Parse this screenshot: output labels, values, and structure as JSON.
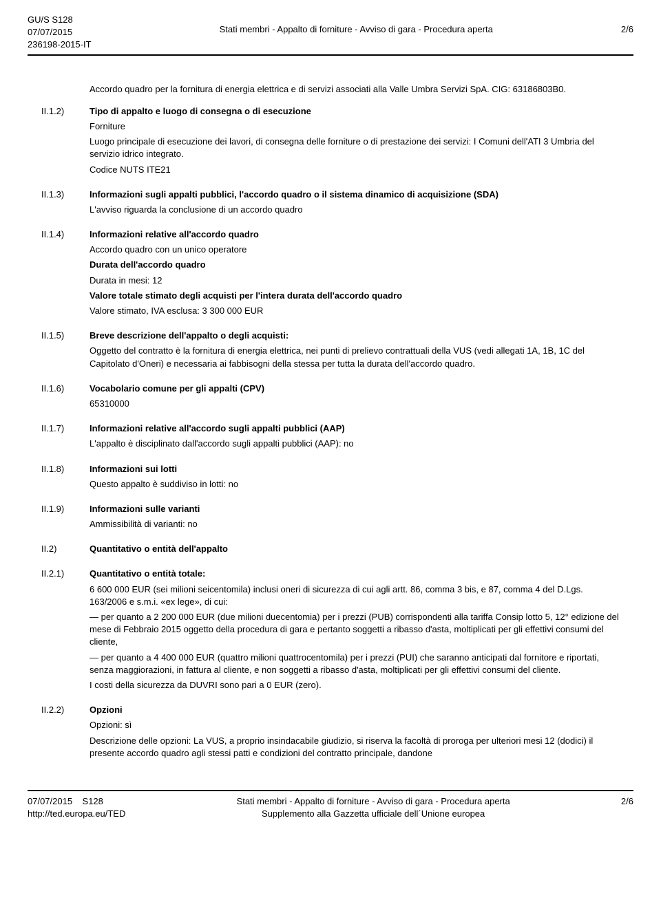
{
  "header": {
    "left_line1": "GU/S S128",
    "left_line2": "07/07/2015",
    "left_line3": "236198-2015-IT",
    "center": "Stati membri - Appalto di forniture - Avviso di gara - Procedura aperta",
    "right": "2/6"
  },
  "sections": [
    {
      "label": "",
      "indent_only": true,
      "paragraphs": [
        {
          "text": "Accordo quadro per la fornitura di energia elettrica e di servizi associati alla Valle Umbra Servizi SpA. CIG: 63186803B0."
        }
      ]
    },
    {
      "label": "II.1.2)",
      "paragraphs": [
        {
          "text": "Tipo di appalto e luogo di consegna o di esecuzione",
          "bold": true
        },
        {
          "text": "Forniture"
        },
        {
          "text": "Luogo principale di esecuzione dei lavori, di consegna delle forniture o di prestazione dei servizi: I Comuni dell'ATI 3 Umbria del servizio idrico integrato."
        },
        {
          "text": "Codice NUTS ITE21"
        }
      ]
    },
    {
      "label": "II.1.3)",
      "paragraphs": [
        {
          "text": "Informazioni sugli appalti pubblici, l'accordo quadro o il sistema dinamico di acquisizione (SDA)",
          "bold": true
        },
        {
          "text": "L'avviso riguarda la conclusione di un accordo quadro"
        }
      ]
    },
    {
      "label": "II.1.4)",
      "paragraphs": [
        {
          "text": "Informazioni relative all'accordo quadro",
          "bold": true
        },
        {
          "text": "Accordo quadro con un unico operatore"
        },
        {
          "text": "Durata dell'accordo quadro",
          "bold": true
        },
        {
          "text": "Durata in mesi: 12"
        },
        {
          "text": "Valore totale stimato degli acquisti per l'intera durata dell'accordo quadro",
          "bold": true
        },
        {
          "text": "Valore stimato, IVA esclusa: 3 300 000 EUR"
        }
      ]
    },
    {
      "label": "II.1.5)",
      "paragraphs": [
        {
          "text": "Breve descrizione dell'appalto o degli acquisti:",
          "bold": true
        },
        {
          "text": "Oggetto del contratto è la fornitura di energia elettrica, nei punti di prelievo contrattuali della VUS (vedi allegati 1A, 1B, 1C del Capitolato d'Oneri) e necessaria ai fabbisogni della stessa per tutta la durata dell'accordo quadro."
        }
      ]
    },
    {
      "label": "II.1.6)",
      "paragraphs": [
        {
          "text": "Vocabolario comune per gli appalti (CPV)",
          "bold": true
        },
        {
          "text": "65310000"
        }
      ]
    },
    {
      "label": "II.1.7)",
      "paragraphs": [
        {
          "text": "Informazioni relative all'accordo sugli appalti pubblici (AAP)",
          "bold": true
        },
        {
          "text": "L'appalto è disciplinato dall'accordo sugli appalti pubblici (AAP): no"
        }
      ]
    },
    {
      "label": "II.1.8)",
      "paragraphs": [
        {
          "text": "Informazioni sui lotti",
          "bold": true
        },
        {
          "text": "Questo appalto è suddiviso in lotti: no"
        }
      ]
    },
    {
      "label": "II.1.9)",
      "paragraphs": [
        {
          "text": "Informazioni sulle varianti",
          "bold": true
        },
        {
          "text": "Ammissibilità di varianti: no"
        }
      ]
    },
    {
      "label": "II.2)",
      "paragraphs": [
        {
          "text": "Quantitativo o entità dell'appalto",
          "bold": true
        }
      ]
    },
    {
      "label": "II.2.1)",
      "paragraphs": [
        {
          "text": "Quantitativo o entità totale:",
          "bold": true
        },
        {
          "text": "6 600 000 EUR (sei milioni seicentomila) inclusi oneri di sicurezza di cui agli artt. 86, comma 3 bis, e 87, comma 4 del D.Lgs. 163/2006 e s.m.i. «ex lege», di cui:"
        },
        {
          "text": "— per quanto a 2 200 000 EUR (due milioni duecentomia) per i prezzi (PUB) corrispondenti alla tariffa Consip lotto 5, 12° edizione del mese di Febbraio 2015 oggetto della procedura di gara e pertanto soggetti a ribasso d'asta, moltiplicati per gli effettivi consumi del cliente,"
        },
        {
          "text": "— per quanto a 4 400 000 EUR (quattro milioni quattrocentomila) per i prezzi (PUI) che saranno anticipati dal fornitore e riportati, senza maggiorazioni, in fattura al cliente, e non soggetti a ribasso d'asta, moltiplicati per gli effettivi consumi del cliente."
        },
        {
          "text": "I costi della sicurezza da DUVRI sono pari a 0 EUR (zero)."
        }
      ]
    },
    {
      "label": "II.2.2)",
      "paragraphs": [
        {
          "text": "Opzioni",
          "bold": true
        },
        {
          "text": "Opzioni: sì"
        },
        {
          "text": "Descrizione delle opzioni: La VUS, a proprio insindacabile giudizio, si riserva la facoltà di proroga per ulteriori mesi 12 (dodici) il presente accordo quadro agli stessi patti e condizioni del contratto principale, dandone"
        }
      ]
    }
  ],
  "footer": {
    "left_line1": "07/07/2015",
    "left_line2": "http://ted.europa.eu/TED",
    "left_suffix": "S128",
    "center_line1": "Stati membri - Appalto di forniture - Avviso di gara - Procedura aperta",
    "center_line2": "Supplemento alla Gazzetta ufficiale dell´Unione europea",
    "right": "2/6"
  }
}
